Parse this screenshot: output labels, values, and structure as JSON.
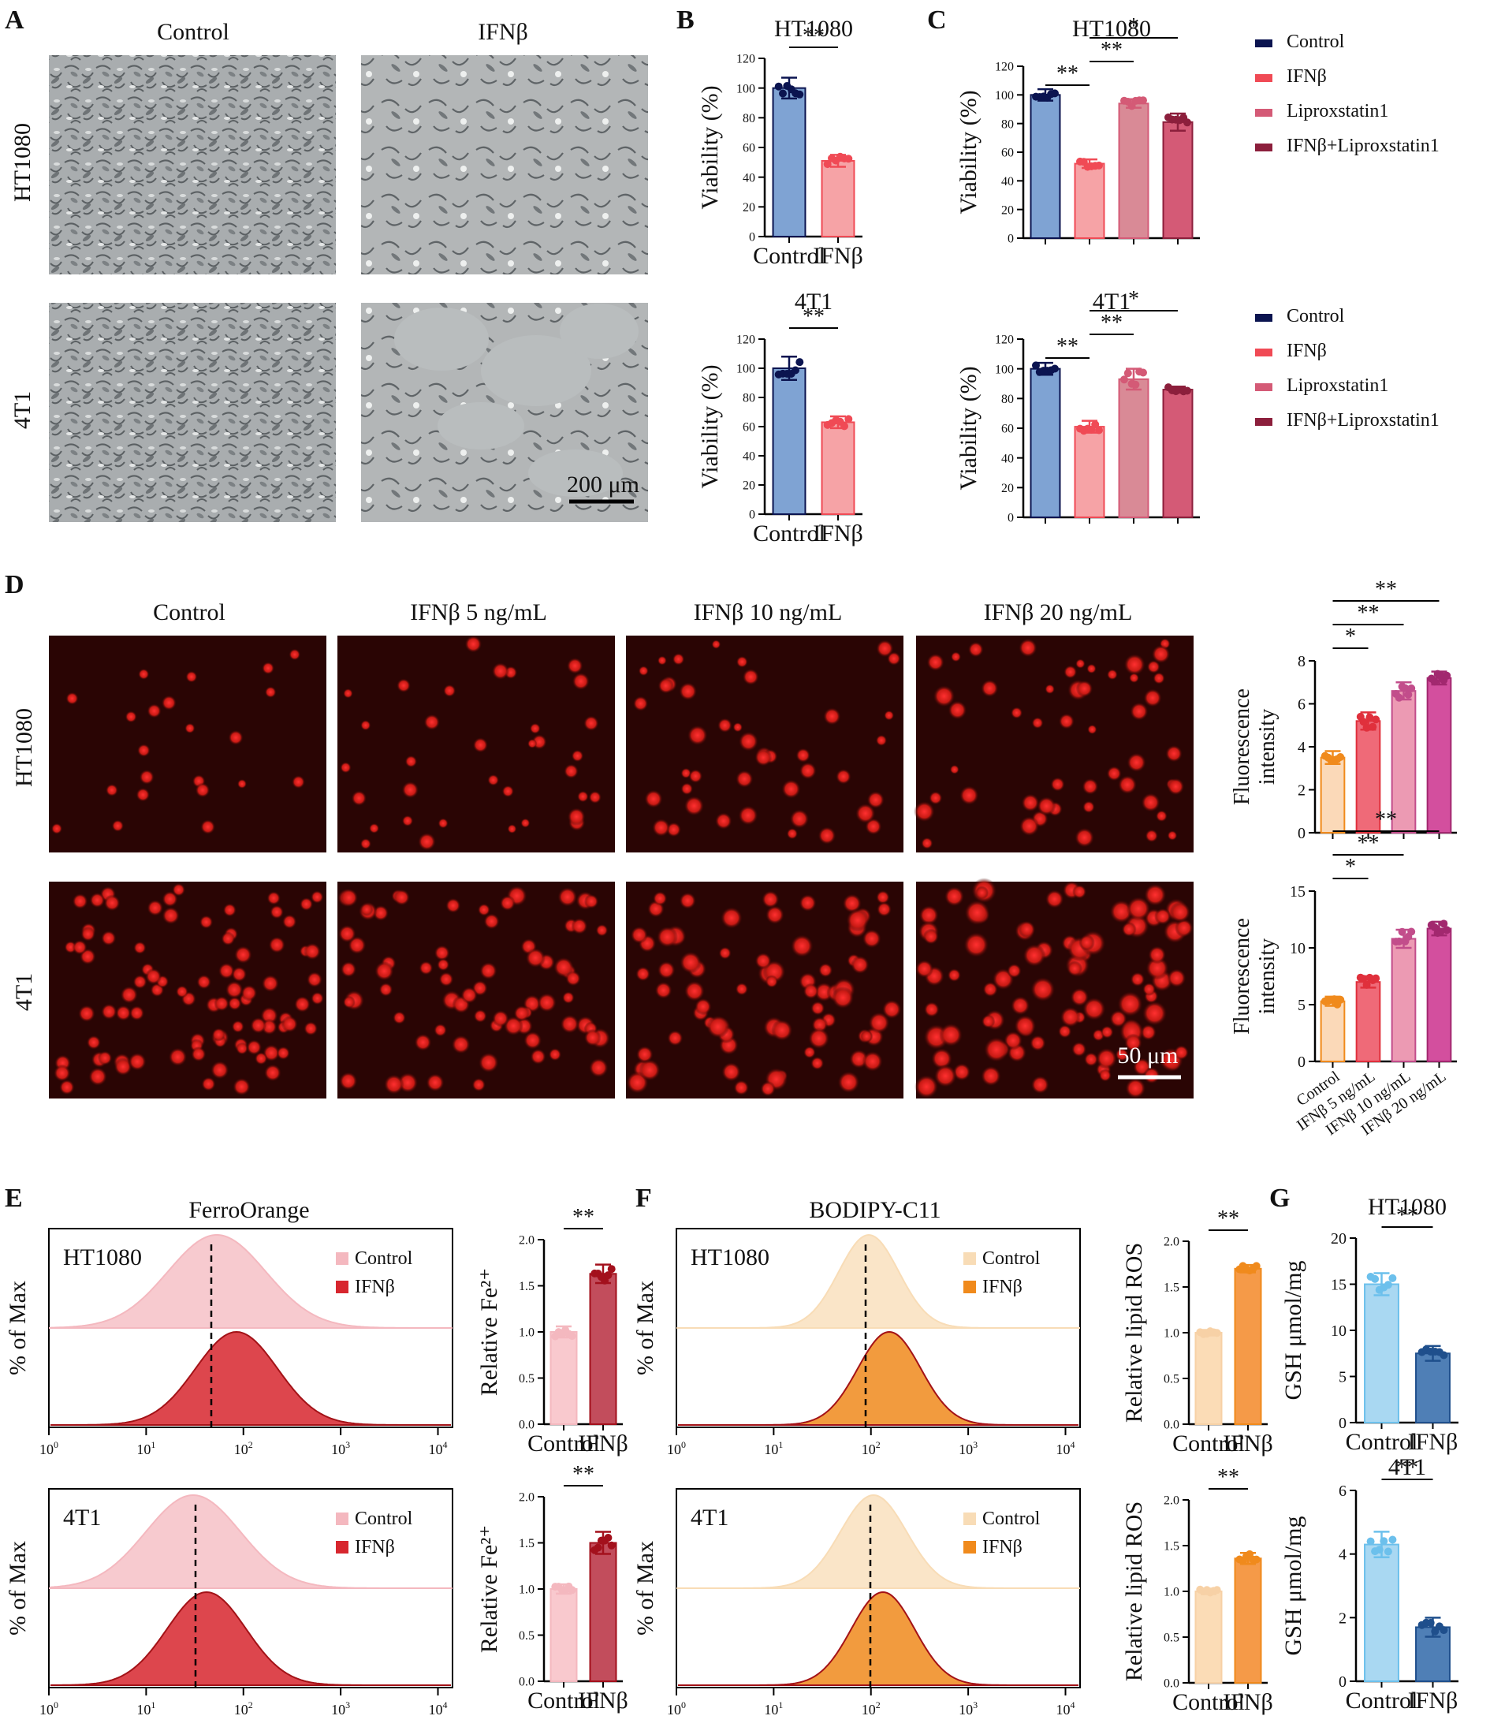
{
  "panel_letters": {
    "A": "A",
    "B": "B",
    "C": "C",
    "D": "D",
    "E": "E",
    "F": "F",
    "G": "G"
  },
  "micro": {
    "col_labels": [
      "Control",
      "IFNβ"
    ],
    "row_labels": [
      "HT1080",
      "4T1"
    ],
    "scale_bar": "200 μm"
  },
  "fluor": {
    "col_labels": [
      "Control",
      "IFNβ 5 ng/mL",
      "IFNβ 10 ng/mL",
      "IFNβ 20 ng/mL"
    ],
    "row_labels": [
      "HT1080",
      "4T1"
    ],
    "scale_bar": "50 μm"
  },
  "flow": [
    {
      "dye": "FerroOrange",
      "rows": [
        {
          "cell": "HT1080",
          "legend": [
            "Control",
            "IFNβ"
          ]
        },
        {
          "cell": "4T1",
          "legend": [
            "Control",
            "IFNβ"
          ]
        }
      ],
      "ylabel": "% of Max",
      "xticks": [
        "10",
        "10",
        "10",
        "10",
        "10"
      ],
      "xtick_exp": [
        "0",
        "1",
        "2",
        "3",
        "4"
      ],
      "colors": {
        "control": "#f4b8bf",
        "treated": "#d7262e"
      }
    },
    {
      "dye": "BODIPY-C11",
      "rows": [
        {
          "cell": "HT1080",
          "legend": [
            "Control",
            "IFNβ"
          ]
        },
        {
          "cell": "4T1",
          "legend": [
            "Control",
            "IFNβ"
          ]
        }
      ],
      "ylabel": "% of Max",
      "xticks": [
        "10",
        "10",
        "10",
        "10",
        "10"
      ],
      "xtick_exp": [
        "0",
        "1",
        "2",
        "3",
        "4"
      ],
      "colors": {
        "control": "#f8dcb6",
        "treated": "#f08a1c"
      }
    }
  ],
  "legend_C": {
    "entries": [
      "Control",
      "IFNβ",
      "Liproxstatin1",
      "IFNβ+Liproxstatin1"
    ],
    "colors": [
      "#0b1450",
      "#f04a55",
      "#d45a76",
      "#8c1f3c"
    ]
  },
  "chart_data": [
    {
      "id": "B-top",
      "type": "bar",
      "title": "HT1080",
      "ylabel": "Viability (%)",
      "categories": [
        "Control",
        "IFNβ"
      ],
      "values": [
        100,
        51
      ],
      "errors": [
        7,
        4
      ],
      "ylim": [
        0,
        120
      ],
      "yticks": [
        0,
        20,
        40,
        60,
        80,
        100,
        120
      ],
      "sig": [
        {
          "a": 0,
          "b": 1,
          "label": "**"
        }
      ]
    },
    {
      "id": "B-bottom",
      "type": "bar",
      "title": "4T1",
      "ylabel": "Viability (%)",
      "categories": [
        "Control",
        "IFNβ"
      ],
      "values": [
        100,
        63
      ],
      "errors": [
        8,
        4
      ],
      "ylim": [
        0,
        120
      ],
      "yticks": [
        0,
        20,
        40,
        60,
        80,
        100,
        120
      ],
      "sig": [
        {
          "a": 0,
          "b": 1,
          "label": "**"
        }
      ]
    },
    {
      "id": "C-top",
      "type": "bar",
      "title": "HT1080",
      "ylabel": "Viability (%)",
      "categories": [
        "Control",
        "IFNβ",
        "Liproxstatin1",
        "IFNβ+Liproxstatin1"
      ],
      "show_categories": false,
      "values": [
        100,
        52,
        94,
        81
      ],
      "errors": [
        4,
        3,
        3,
        6
      ],
      "ylim": [
        0,
        120
      ],
      "yticks": [
        0,
        20,
        40,
        60,
        80,
        100,
        120
      ],
      "sig": [
        {
          "a": 0,
          "b": 1,
          "label": "**"
        },
        {
          "a": 1,
          "b": 2,
          "label": "**"
        },
        {
          "a": 1,
          "b": 3,
          "label": "*"
        }
      ]
    },
    {
      "id": "C-bottom",
      "type": "bar",
      "title": "4T1",
      "ylabel": "Viability (%)",
      "categories": [
        "Control",
        "IFNβ",
        "Liproxstatin1",
        "IFNβ+Liproxstatin1"
      ],
      "show_categories": false,
      "values": [
        100,
        61,
        93,
        86
      ],
      "errors": [
        4,
        4,
        7,
        2
      ],
      "ylim": [
        0,
        120
      ],
      "yticks": [
        0,
        20,
        40,
        60,
        80,
        100,
        120
      ],
      "sig": [
        {
          "a": 0,
          "b": 1,
          "label": "**"
        },
        {
          "a": 1,
          "b": 2,
          "label": "**"
        },
        {
          "a": 1,
          "b": 3,
          "label": "*"
        }
      ]
    },
    {
      "id": "D-top",
      "type": "bar",
      "title": "",
      "ylabel": "Fluorescence intensity",
      "categories": [
        "Control",
        "IFNβ 5 ng/mL",
        "IFNβ 10 ng/mL",
        "IFNβ 20 ng/mL"
      ],
      "show_categories": false,
      "values": [
        3.5,
        5.2,
        6.6,
        7.2
      ],
      "errors": [
        0.3,
        0.4,
        0.4,
        0.3
      ],
      "ylim": [
        0,
        8
      ],
      "yticks": [
        0,
        2,
        4,
        6,
        8
      ],
      "sig": [
        {
          "a": 0,
          "b": 1,
          "label": "*"
        },
        {
          "a": 0,
          "b": 2,
          "label": "**"
        },
        {
          "a": 0,
          "b": 3,
          "label": "**"
        }
      ]
    },
    {
      "id": "D-bottom",
      "type": "bar",
      "title": "",
      "ylabel": "Fluorescence intensity",
      "categories": [
        "Control",
        "IFNβ 5 ng/mL",
        "IFNβ 10 ng/mL",
        "IFNβ 20 ng/mL"
      ],
      "show_categories": true,
      "values": [
        5.3,
        7.0,
        10.8,
        11.7
      ],
      "errors": [
        0.4,
        0.5,
        0.8,
        0.6
      ],
      "ylim": [
        0,
        15
      ],
      "yticks": [
        0,
        5,
        10,
        15
      ],
      "sig": [
        {
          "a": 0,
          "b": 1,
          "label": "*"
        },
        {
          "a": 0,
          "b": 2,
          "label": "**"
        },
        {
          "a": 0,
          "b": 3,
          "label": "**"
        }
      ]
    },
    {
      "id": "E-top",
      "type": "bar",
      "title": "",
      "ylabel": "Relative Fe²⁺",
      "categories": [
        "Control",
        "IFNβ"
      ],
      "values": [
        1.0,
        1.63
      ],
      "errors": [
        0.06,
        0.1
      ],
      "ylim": [
        0,
        2.0
      ],
      "yticks": [
        0.0,
        0.5,
        1.0,
        1.5,
        2.0
      ],
      "sig": [
        {
          "a": 0,
          "b": 1,
          "label": "**"
        }
      ]
    },
    {
      "id": "E-bottom",
      "type": "bar",
      "title": "",
      "ylabel": "Relative Fe²⁺",
      "categories": [
        "Control",
        "IFNβ"
      ],
      "values": [
        1.0,
        1.5
      ],
      "errors": [
        0.05,
        0.12
      ],
      "ylim": [
        0,
        2.0
      ],
      "yticks": [
        0.0,
        0.5,
        1.0,
        1.5,
        2.0
      ],
      "sig": [
        {
          "a": 0,
          "b": 1,
          "label": "**"
        }
      ]
    },
    {
      "id": "F-top",
      "type": "bar",
      "title": "",
      "ylabel": "Relative lipid ROS",
      "categories": [
        "Control",
        "IFNβ"
      ],
      "values": [
        1.0,
        1.7
      ],
      "errors": [
        0.03,
        0.04
      ],
      "ylim": [
        0,
        2.0
      ],
      "yticks": [
        0.0,
        0.5,
        1.0,
        1.5,
        2.0
      ],
      "sig": [
        {
          "a": 0,
          "b": 1,
          "label": "**"
        }
      ]
    },
    {
      "id": "F-bottom",
      "type": "bar",
      "title": "",
      "ylabel": "Relative lipid ROS",
      "categories": [
        "Control",
        "IFNβ"
      ],
      "values": [
        1.0,
        1.36
      ],
      "errors": [
        0.03,
        0.06
      ],
      "ylim": [
        0,
        2.0
      ],
      "yticks": [
        0.0,
        0.5,
        1.0,
        1.5,
        2.0
      ],
      "sig": [
        {
          "a": 0,
          "b": 1,
          "label": "**"
        }
      ]
    },
    {
      "id": "G-top",
      "type": "bar",
      "title": "HT1080",
      "ylabel": "GSH μmol/mg",
      "categories": [
        "Control",
        "IFNβ"
      ],
      "values": [
        15,
        7.5
      ],
      "errors": [
        1.2,
        0.8
      ],
      "ylim": [
        0,
        20
      ],
      "yticks": [
        0,
        5,
        10,
        15,
        20
      ],
      "sig": [
        {
          "a": 0,
          "b": 1,
          "label": "**"
        }
      ]
    },
    {
      "id": "G-bottom",
      "type": "bar",
      "title": "4T1",
      "ylabel": "GSH μmol/mg",
      "categories": [
        "Control",
        "IFNβ"
      ],
      "values": [
        4.3,
        1.7
      ],
      "errors": [
        0.4,
        0.3
      ],
      "ylim": [
        0,
        6
      ],
      "yticks": [
        0,
        2,
        4,
        6
      ],
      "sig": [
        {
          "a": 0,
          "b": 1,
          "label": "**"
        }
      ]
    }
  ],
  "bar_colors": {
    "B": [
      "#7fa3d3",
      "#f6a3a6"
    ],
    "C": [
      "#7fa3d3",
      "#f6a3a6",
      "#d98a96",
      "#d45a76"
    ],
    "D": [
      "#fbd9b8",
      "#ef6a78",
      "#ec9ab3",
      "#d34f9e"
    ],
    "E": [
      "#f9c9ce",
      "#c24d5c"
    ],
    "F": [
      "#fbdcb6",
      "#f59a48"
    ],
    "G": [
      "#a9d8f2",
      "#4f7fb6"
    ]
  },
  "dot_colors": {
    "B": [
      "#0b1450",
      "#f04a55"
    ],
    "C": [
      "#0b1450",
      "#f04a55",
      "#d45a76",
      "#8c1f3c"
    ],
    "D": [
      "#f08a1c",
      "#e0303c",
      "#c24d8b",
      "#a2286f"
    ],
    "E": [
      "#f4b8bf",
      "#a3101c"
    ],
    "F": [
      "#f7d1a6",
      "#f08a1c"
    ],
    "G": [
      "#6cc0ec",
      "#1f4f8c"
    ]
  }
}
